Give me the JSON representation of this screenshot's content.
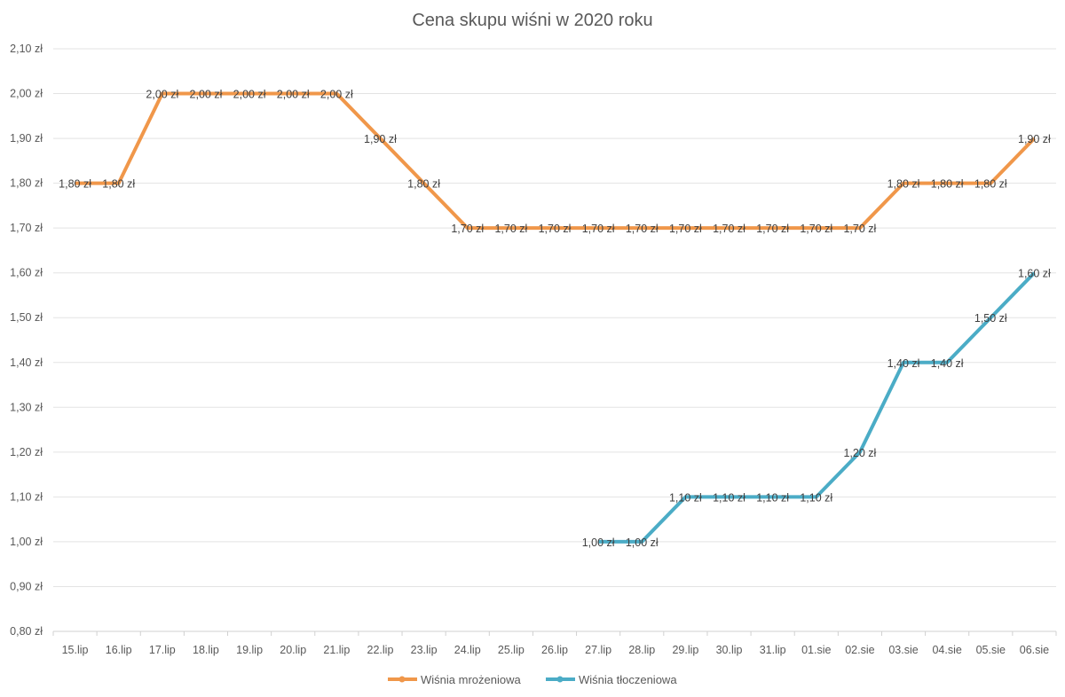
{
  "chart_data": {
    "type": "line",
    "title": "Cena skupu wiśni w 2020 roku",
    "xlabel": "",
    "ylabel": "",
    "categories": [
      "15.lip",
      "16.lip",
      "17.lip",
      "18.lip",
      "19.lip",
      "20.lip",
      "21.lip",
      "22.lip",
      "23.lip",
      "24.lip",
      "25.lip",
      "26.lip",
      "27.lip",
      "28.lip",
      "29.lip",
      "30.lip",
      "31.lip",
      "01.sie",
      "02.sie",
      "03.sie",
      "04.sie",
      "05.sie",
      "06.sie"
    ],
    "ylim": [
      0.8,
      2.1
    ],
    "y_ticks": [
      0.8,
      0.9,
      1.0,
      1.1,
      1.2,
      1.3,
      1.4,
      1.5,
      1.6,
      1.7,
      1.8,
      1.9,
      2.0,
      2.1
    ],
    "y_tick_format": "0,00 zł",
    "grid": true,
    "legend_position": "bottom",
    "data_labels": true,
    "series": [
      {
        "name": "Wiśnia mrożeniowa",
        "color": "#F0974A",
        "values": [
          1.8,
          1.8,
          2.0,
          2.0,
          2.0,
          2.0,
          2.0,
          1.9,
          1.8,
          1.7,
          1.7,
          1.7,
          1.7,
          1.7,
          1.7,
          1.7,
          1.7,
          1.7,
          1.7,
          1.8,
          1.8,
          1.8,
          1.9
        ]
      },
      {
        "name": "Wiśnia tłoczeniowa",
        "color": "#4BACC6",
        "values": [
          null,
          null,
          null,
          null,
          null,
          null,
          null,
          null,
          null,
          null,
          null,
          null,
          1.0,
          1.0,
          1.1,
          1.1,
          1.1,
          1.1,
          1.2,
          1.4,
          1.4,
          1.5,
          1.6
        ]
      }
    ]
  }
}
